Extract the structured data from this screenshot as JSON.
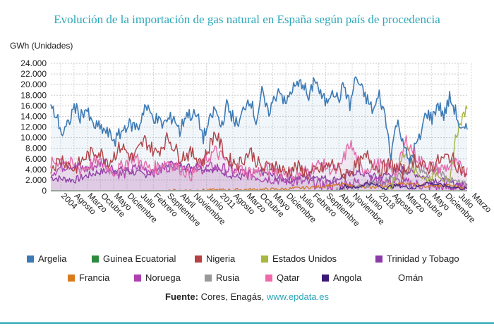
{
  "chart_data": {
    "type": "line",
    "title": "Evolución de la importación de gas natural en España según país de procedencia",
    "ylabel": "GWh (Unidades)",
    "xlabel": "",
    "ylim": [
      0,
      24000
    ],
    "y_ticks": [
      "0",
      "2.000",
      "4.000",
      "6.000",
      "8.000",
      "10.000",
      "12.000",
      "14.000",
      "16.000",
      "18.000",
      "20.000",
      "22.000",
      "24.000"
    ],
    "x_ticks": [
      "2004",
      "Agosto",
      "Marzo",
      "Octubre",
      "Mayo",
      "Diciembre",
      "Julio",
      "Febrero",
      "Septiembre",
      "Abril",
      "Noviembre",
      "Junio",
      "2011",
      "Agosto",
      "Marzo",
      "Octubre",
      "Mayo",
      "Diciembre",
      "Julio",
      "Febrero",
      "Septiembre",
      "Abril",
      "Noviembre",
      "Junio",
      "2018",
      "Agosto",
      "Marzo",
      "Octubre",
      "Mayo",
      "Diciembre",
      "Julio",
      "Marzo"
    ],
    "grid": true,
    "series": [
      {
        "name": "Argelia",
        "color": "#3d7ab5",
        "anchors": [
          [
            0,
            15500
          ],
          [
            5,
            14000
          ],
          [
            10,
            10500
          ],
          [
            15,
            12500
          ],
          [
            20,
            16000
          ],
          [
            25,
            14000
          ],
          [
            30,
            15500
          ],
          [
            35,
            12500
          ],
          [
            45,
            11500
          ],
          [
            55,
            9500
          ],
          [
            60,
            11000
          ],
          [
            65,
            12500
          ],
          [
            75,
            12000
          ],
          [
            80,
            16000
          ],
          [
            85,
            14500
          ],
          [
            95,
            12500
          ],
          [
            105,
            14000
          ],
          [
            110,
            11000
          ],
          [
            115,
            14500
          ],
          [
            125,
            14000
          ],
          [
            130,
            10000
          ],
          [
            140,
            15500
          ],
          [
            145,
            12000
          ],
          [
            150,
            16000
          ],
          [
            160,
            12000
          ],
          [
            165,
            16000
          ],
          [
            170,
            17500
          ],
          [
            175,
            13000
          ],
          [
            180,
            18500
          ],
          [
            185,
            14500
          ],
          [
            195,
            19500
          ],
          [
            200,
            16000
          ],
          [
            205,
            19000
          ],
          [
            215,
            20500
          ],
          [
            220,
            17000
          ],
          [
            225,
            21500
          ],
          [
            230,
            18000
          ],
          [
            235,
            16500
          ],
          [
            240,
            19500
          ],
          [
            245,
            17000
          ],
          [
            250,
            20000
          ],
          [
            255,
            16000
          ],
          [
            260,
            21500
          ],
          [
            265,
            19000
          ],
          [
            270,
            17000
          ],
          [
            275,
            15000
          ],
          [
            280,
            18000
          ],
          [
            285,
            14000
          ],
          [
            290,
            7000
          ],
          [
            295,
            13000
          ],
          [
            300,
            10000
          ],
          [
            305,
            5000
          ],
          [
            310,
            8000
          ],
          [
            315,
            10000
          ],
          [
            320,
            15000
          ],
          [
            325,
            13500
          ],
          [
            330,
            16500
          ],
          [
            335,
            14000
          ],
          [
            340,
            17500
          ],
          [
            345,
            15000
          ],
          [
            350,
            11000
          ],
          [
            355,
            11500
          ]
        ]
      },
      {
        "name": "Guinea Ecuatorial",
        "color": "#2e8b3e",
        "anchors": [
          [
            0,
            0
          ],
          [
            355,
            0
          ]
        ]
      },
      {
        "name": "Nigeria",
        "color": "#b84040",
        "anchors": [
          [
            0,
            4500
          ],
          [
            10,
            6000
          ],
          [
            20,
            4000
          ],
          [
            30,
            6500
          ],
          [
            40,
            7500
          ],
          [
            50,
            5500
          ],
          [
            60,
            8500
          ],
          [
            70,
            6000
          ],
          [
            80,
            9500
          ],
          [
            90,
            7000
          ],
          [
            100,
            10000
          ],
          [
            110,
            6500
          ],
          [
            120,
            7000
          ],
          [
            130,
            5500
          ],
          [
            140,
            11000
          ],
          [
            150,
            6000
          ],
          [
            160,
            5000
          ],
          [
            170,
            7500
          ],
          [
            180,
            4000
          ],
          [
            190,
            5000
          ],
          [
            200,
            3500
          ],
          [
            210,
            4500
          ],
          [
            220,
            3000
          ],
          [
            230,
            4000
          ],
          [
            240,
            5000
          ],
          [
            250,
            3000
          ],
          [
            260,
            4500
          ],
          [
            270,
            6500
          ],
          [
            280,
            4000
          ],
          [
            290,
            5000
          ],
          [
            300,
            3500
          ],
          [
            310,
            6000
          ],
          [
            320,
            4000
          ],
          [
            330,
            5500
          ],
          [
            340,
            6500
          ],
          [
            350,
            4000
          ],
          [
            355,
            3000
          ]
        ]
      },
      {
        "name": "Estados Unidos",
        "color": "#a8b83c",
        "anchors": [
          [
            0,
            0
          ],
          [
            280,
            0
          ],
          [
            290,
            500
          ],
          [
            300,
            6500
          ],
          [
            305,
            8000
          ],
          [
            310,
            4000
          ],
          [
            320,
            2000
          ],
          [
            330,
            3500
          ],
          [
            340,
            1000
          ],
          [
            345,
            10000
          ],
          [
            350,
            13000
          ],
          [
            355,
            16000
          ]
        ]
      },
      {
        "name": "Trinidad y Tobago",
        "color": "#8b3aa8",
        "anchors": [
          [
            0,
            2500
          ],
          [
            20,
            2000
          ],
          [
            40,
            3500
          ],
          [
            60,
            4000
          ],
          [
            80,
            3000
          ],
          [
            100,
            5000
          ],
          [
            120,
            4500
          ],
          [
            140,
            4000
          ],
          [
            160,
            2500
          ],
          [
            180,
            3500
          ],
          [
            200,
            2000
          ],
          [
            220,
            3000
          ],
          [
            240,
            2000
          ],
          [
            260,
            3500
          ],
          [
            280,
            2500
          ],
          [
            300,
            4000
          ],
          [
            320,
            2500
          ],
          [
            340,
            1500
          ],
          [
            355,
            1000
          ]
        ]
      },
      {
        "name": "Francia",
        "color": "#d97b1c",
        "anchors": [
          [
            0,
            0
          ],
          [
            100,
            0
          ],
          [
            200,
            300
          ],
          [
            230,
            800
          ],
          [
            250,
            1200
          ],
          [
            270,
            500
          ],
          [
            300,
            1500
          ],
          [
            320,
            800
          ],
          [
            340,
            1000
          ],
          [
            355,
            500
          ]
        ]
      },
      {
        "name": "Noruega",
        "color": "#b03fb0",
        "anchors": [
          [
            0,
            3500
          ],
          [
            15,
            5000
          ],
          [
            30,
            4000
          ],
          [
            45,
            5500
          ],
          [
            60,
            3000
          ],
          [
            75,
            4500
          ],
          [
            90,
            3500
          ],
          [
            105,
            5000
          ],
          [
            120,
            4000
          ],
          [
            140,
            4500
          ],
          [
            160,
            3500
          ],
          [
            180,
            2500
          ],
          [
            200,
            2000
          ],
          [
            220,
            1500
          ],
          [
            240,
            1000
          ],
          [
            260,
            1500
          ],
          [
            280,
            2000
          ],
          [
            300,
            1500
          ],
          [
            320,
            1000
          ],
          [
            340,
            500
          ],
          [
            355,
            500
          ]
        ]
      },
      {
        "name": "Rusia",
        "color": "#999999",
        "anchors": [
          [
            0,
            0
          ],
          [
            240,
            0
          ],
          [
            260,
            500
          ],
          [
            280,
            1500
          ],
          [
            300,
            3000
          ],
          [
            310,
            5000
          ],
          [
            320,
            3000
          ],
          [
            330,
            4000
          ],
          [
            340,
            2000
          ],
          [
            355,
            1000
          ]
        ]
      },
      {
        "name": "Qatar",
        "color": "#f06aaa",
        "anchors": [
          [
            0,
            5000
          ],
          [
            10,
            6000
          ],
          [
            25,
            4000
          ],
          [
            40,
            5500
          ],
          [
            55,
            3500
          ],
          [
            70,
            6500
          ],
          [
            85,
            4000
          ],
          [
            100,
            5500
          ],
          [
            120,
            3000
          ],
          [
            140,
            7500
          ],
          [
            155,
            4500
          ],
          [
            170,
            3500
          ],
          [
            190,
            4000
          ],
          [
            210,
            3000
          ],
          [
            230,
            5000
          ],
          [
            245,
            3500
          ],
          [
            255,
            9000
          ],
          [
            265,
            4000
          ],
          [
            280,
            5000
          ],
          [
            295,
            3500
          ],
          [
            303,
            9500
          ],
          [
            315,
            5500
          ],
          [
            330,
            4000
          ],
          [
            345,
            5000
          ],
          [
            355,
            3500
          ]
        ]
      },
      {
        "name": "Angola",
        "color": "#3a1a78",
        "anchors": [
          [
            0,
            0
          ],
          [
            245,
            0
          ],
          [
            250,
            1000
          ],
          [
            260,
            500
          ],
          [
            270,
            1500
          ],
          [
            285,
            500
          ],
          [
            295,
            1000
          ],
          [
            310,
            500
          ],
          [
            320,
            1500
          ],
          [
            340,
            800
          ],
          [
            355,
            300
          ]
        ]
      },
      {
        "name": "Omán",
        "color": "#ffffff",
        "anchors": [
          [
            0,
            0
          ],
          [
            355,
            0
          ]
        ]
      }
    ]
  },
  "legend": {
    "items": [
      "Argelia",
      "Guinea Ecuatorial",
      "Nigeria",
      "Estados Unidos",
      "Trinidad y Tobago",
      "Francia",
      "Noruega",
      "Rusia",
      "Qatar",
      "Angola",
      "Omán"
    ],
    "colors": [
      "#3d7ab5",
      "#2e8b3e",
      "#b84040",
      "#a8b83c",
      "#8b3aa8",
      "#d97b1c",
      "#b03fb0",
      "#999999",
      "#f06aaa",
      "#3a1a78",
      "#ffffff"
    ]
  },
  "source": {
    "label": "Fuente:",
    "text": "Cores, Enagás,",
    "url": "www.epdata.es"
  }
}
